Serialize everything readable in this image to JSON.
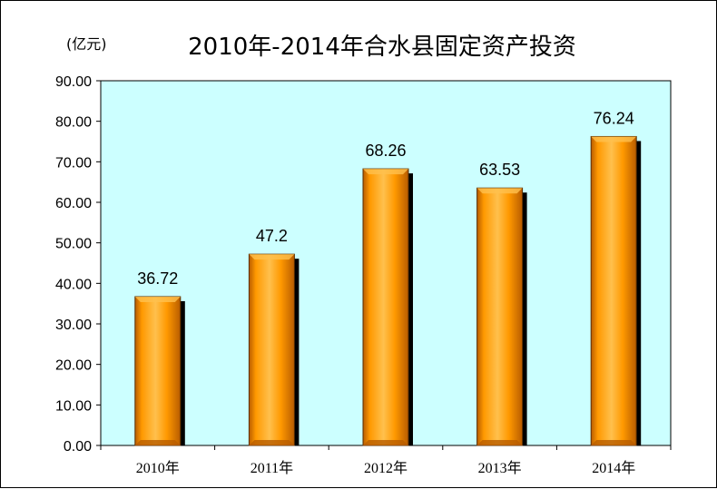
{
  "chart_data": {
    "type": "bar",
    "title": "2010年-2014年合水县固定资产投资",
    "unit_label": "(亿元)",
    "categories": [
      "2010年",
      "2011年",
      "2012年",
      "2013年",
      "2014年"
    ],
    "values": [
      36.72,
      47.2,
      68.26,
      63.53,
      76.24
    ],
    "data_labels": [
      "36.72",
      "47.2",
      "68.26",
      "63.53",
      "76.24"
    ],
    "ylim": [
      0,
      90
    ],
    "yticks": [
      "0.00",
      "10.00",
      "20.00",
      "30.00",
      "40.00",
      "50.00",
      "60.00",
      "70.00",
      "80.00",
      "90.00"
    ],
    "grid": false,
    "legend": "none",
    "colors": {
      "plot_background": "#ccffff",
      "bar_light": "#ffc04d",
      "bar_main": "#ff9900",
      "bar_dark": "#b85c00",
      "shadow": "#000000"
    }
  }
}
